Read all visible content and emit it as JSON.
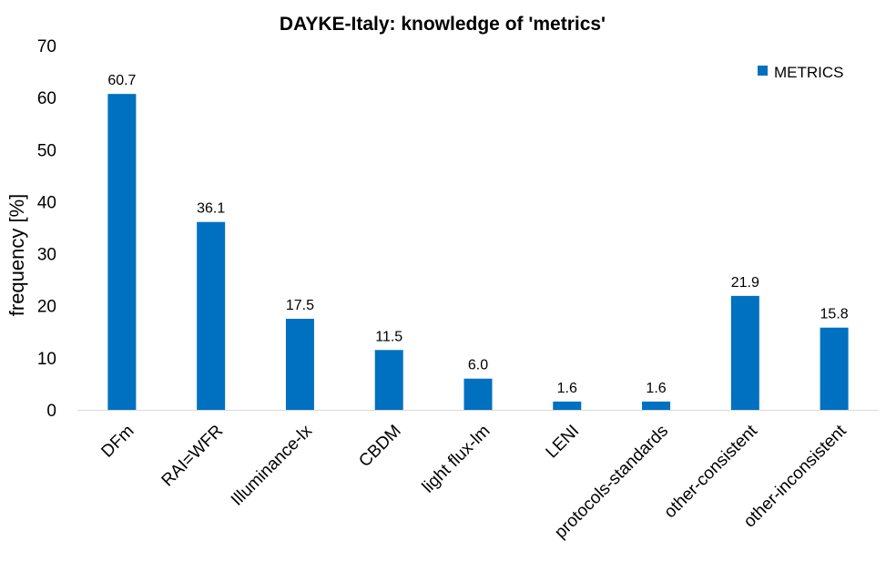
{
  "chart_data": {
    "type": "bar",
    "title": "DAYKE-Italy: knowledge of 'metrics'",
    "xlabel": "",
    "ylabel": "frequency  [%]",
    "ylim": [
      0,
      70
    ],
    "yticks": [
      "0",
      "10",
      "20",
      "30",
      "40",
      "50",
      "60",
      "70"
    ],
    "grid": false,
    "legend_position": "top-right",
    "categories": [
      "DFm",
      "RAI=WFR",
      "Illuminance-lx",
      "CBDM",
      "light flux-lm",
      "LENI",
      "protocols-standards",
      "other-consistent",
      "other-inconsistent"
    ],
    "series": [
      {
        "name": "METRICS",
        "color": "#0070C0",
        "values": [
          60.7,
          36.1,
          17.5,
          11.5,
          6.0,
          1.6,
          1.6,
          21.9,
          15.8
        ],
        "data_labels": [
          "60.7",
          "36.1",
          "17.5",
          "11.5",
          "6.0",
          "1.6",
          "1.6",
          "21.9",
          "15.8"
        ]
      }
    ]
  }
}
